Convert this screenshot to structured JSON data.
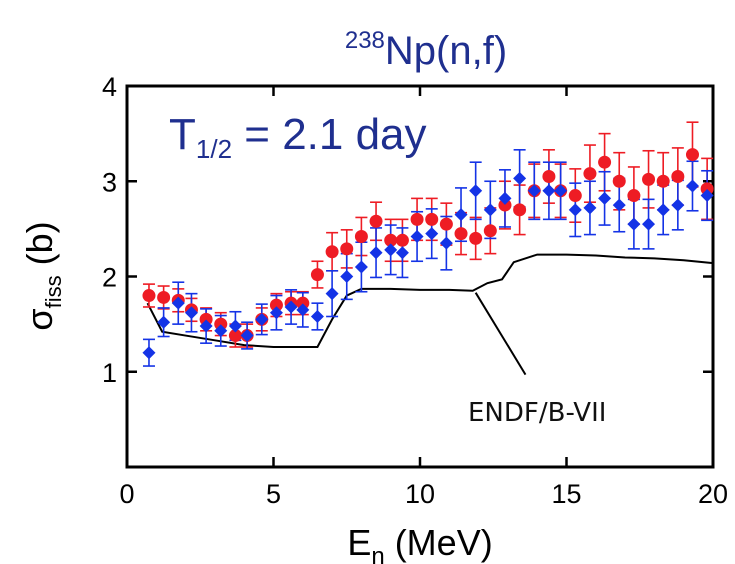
{
  "chart_data": {
    "type": "scatter",
    "title": {
      "superscript": "238",
      "main": "Np(n,f)"
    },
    "xlabel": {
      "symbol": "E",
      "subscript": "n",
      "unit": " (MeV)"
    },
    "ylabel": {
      "symbol": "σ",
      "subscript": "fiss",
      "unit": " (b)"
    },
    "xlim": [
      0,
      20
    ],
    "ylim": [
      0,
      4
    ],
    "xticks": [
      "0",
      "5",
      "10",
      "15",
      "20"
    ],
    "yticks": [
      "1",
      "2",
      "3",
      "4"
    ],
    "xtick_values": [
      0,
      5,
      10,
      15,
      20
    ],
    "ytick_values": [
      1,
      2,
      3,
      4
    ],
    "grid": false,
    "annotations": {
      "half_life": {
        "prefix": "T",
        "subscript": "1/2",
        "text": " = 2.1 day",
        "color": "#1f2f8f"
      },
      "endf_label": {
        "text": "ENDF/B-VII",
        "arrow_from": [
          13.6,
          0.97
        ],
        "arrow_to": [
          11.9,
          1.83
        ]
      }
    },
    "series": [
      {
        "marker": "circle",
        "color": "#ee1c24",
        "x": [
          0.75,
          1.25,
          1.75,
          2.2,
          2.7,
          3.2,
          3.7,
          4.1,
          4.6,
          5.1,
          5.6,
          6.0,
          6.5,
          7.0,
          7.5,
          8.0,
          8.5,
          9.0,
          9.4,
          9.9,
          10.4,
          10.9,
          11.4,
          11.9,
          12.4,
          12.9,
          13.4,
          13.9,
          14.4,
          14.8,
          15.3,
          15.8,
          16.3,
          16.8,
          17.3,
          17.8,
          18.3,
          18.8,
          19.3,
          19.8
        ],
        "y": [
          1.8,
          1.78,
          1.75,
          1.65,
          1.55,
          1.5,
          1.38,
          1.38,
          1.55,
          1.7,
          1.72,
          1.72,
          2.02,
          2.26,
          2.29,
          2.42,
          2.58,
          2.38,
          2.38,
          2.6,
          2.6,
          2.55,
          2.45,
          2.4,
          2.48,
          2.75,
          2.7,
          2.9,
          3.05,
          2.9,
          2.85,
          3.08,
          3.2,
          3.0,
          2.85,
          3.02,
          3.0,
          3.05,
          3.28,
          2.92
        ],
        "err": [
          0.12,
          0.12,
          0.12,
          0.12,
          0.12,
          0.12,
          0.12,
          0.12,
          0.12,
          0.12,
          0.12,
          0.12,
          0.14,
          0.2,
          0.2,
          0.2,
          0.2,
          0.22,
          0.22,
          0.22,
          0.22,
          0.22,
          0.22,
          0.22,
          0.24,
          0.25,
          0.26,
          0.28,
          0.28,
          0.28,
          0.28,
          0.3,
          0.3,
          0.3,
          0.3,
          0.3,
          0.3,
          0.3,
          0.34,
          0.32
        ]
      },
      {
        "marker": "diamond",
        "color": "#1433e6",
        "x": [
          0.75,
          1.25,
          1.75,
          2.2,
          2.7,
          3.2,
          3.7,
          4.1,
          4.6,
          5.1,
          5.6,
          6.0,
          6.5,
          7.0,
          7.5,
          8.0,
          8.5,
          9.0,
          9.4,
          9.9,
          10.4,
          10.9,
          11.4,
          11.9,
          12.4,
          12.9,
          13.4,
          13.9,
          14.4,
          14.8,
          15.3,
          15.8,
          16.3,
          16.8,
          17.3,
          17.8,
          18.3,
          18.8,
          19.3,
          19.8
        ],
        "y": [
          1.2,
          1.52,
          1.72,
          1.62,
          1.48,
          1.43,
          1.48,
          1.38,
          1.55,
          1.62,
          1.68,
          1.65,
          1.58,
          1.82,
          2.0,
          2.1,
          2.25,
          2.28,
          2.25,
          2.42,
          2.45,
          2.35,
          2.65,
          2.9,
          2.7,
          2.82,
          3.03,
          2.9,
          2.9,
          2.9,
          2.7,
          2.72,
          2.82,
          2.75,
          2.55,
          2.55,
          2.7,
          2.75,
          2.95,
          2.85
        ],
        "err": [
          0.14,
          0.15,
          0.22,
          0.2,
          0.18,
          0.16,
          0.15,
          0.14,
          0.16,
          0.18,
          0.18,
          0.18,
          0.14,
          0.24,
          0.24,
          0.26,
          0.26,
          0.26,
          0.26,
          0.26,
          0.26,
          0.28,
          0.28,
          0.3,
          0.3,
          0.3,
          0.3,
          0.3,
          0.3,
          0.3,
          0.28,
          0.28,
          0.28,
          0.28,
          0.26,
          0.26,
          0.26,
          0.26,
          0.26,
          0.26
        ]
      },
      {
        "name": "ENDF/B-VII",
        "marker": "line",
        "color": "#000000",
        "x": [
          0.7,
          1.2,
          2.0,
          3.0,
          4.0,
          5.0,
          6.0,
          6.5,
          7.0,
          7.5,
          8.0,
          9.0,
          10.0,
          11.0,
          11.8,
          12.3,
          12.8,
          13.2,
          14.0,
          15.0,
          16.0,
          17.0,
          18.0,
          19.0,
          20.0
        ],
        "y": [
          1.72,
          1.42,
          1.38,
          1.33,
          1.28,
          1.26,
          1.26,
          1.26,
          1.55,
          1.8,
          1.87,
          1.87,
          1.86,
          1.86,
          1.85,
          1.93,
          1.97,
          2.15,
          2.23,
          2.23,
          2.22,
          2.2,
          2.19,
          2.17,
          2.14
        ]
      }
    ]
  }
}
